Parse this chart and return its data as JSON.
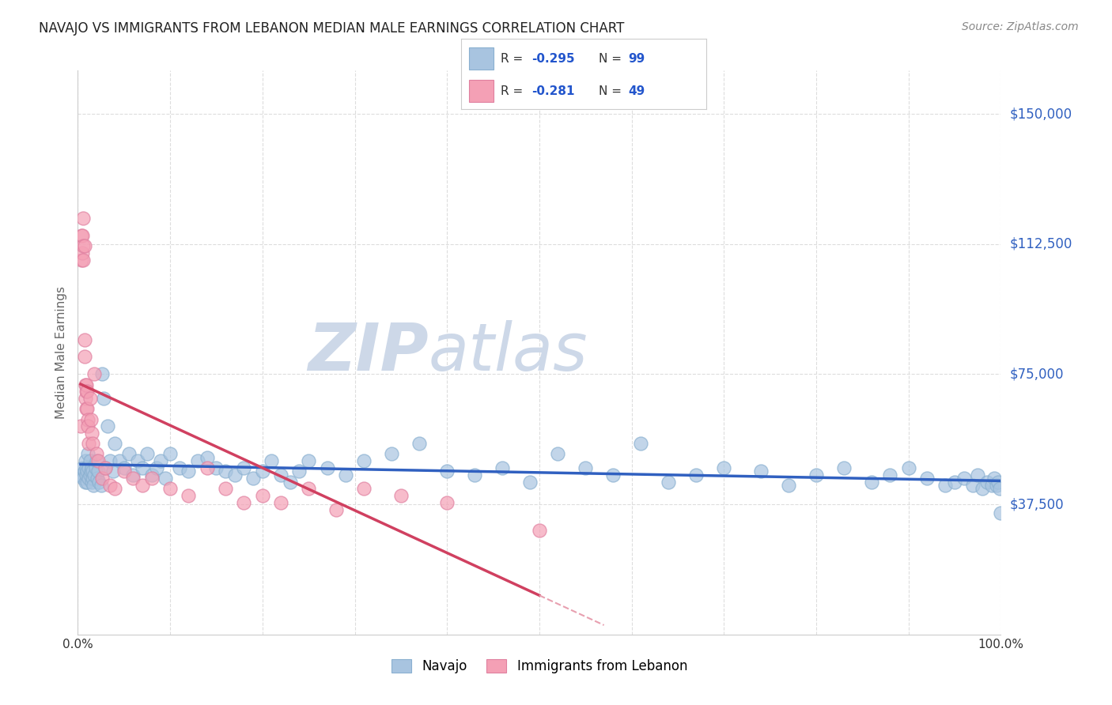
{
  "title": "NAVAJO VS IMMIGRANTS FROM LEBANON MEDIAN MALE EARNINGS CORRELATION CHART",
  "source": "Source: ZipAtlas.com",
  "ylabel": "Median Male Earnings",
  "xlim": [
    0,
    1.0
  ],
  "ylim": [
    0,
    162500
  ],
  "yticks": [
    37500,
    75000,
    112500,
    150000
  ],
  "ytick_labels": [
    "$37,500",
    "$75,000",
    "$112,500",
    "$150,000"
  ],
  "xtick_positions": [
    0.0,
    0.1,
    0.2,
    0.3,
    0.4,
    0.5,
    0.6,
    0.7,
    0.8,
    0.9,
    1.0
  ],
  "xtick_labels": [
    "0.0%",
    "",
    "",
    "",
    "",
    "",
    "",
    "",
    "",
    "",
    "100.0%"
  ],
  "navajo_color": "#a8c4e0",
  "navajo_edge_color": "#8ab0d0",
  "lebanon_color": "#f4a0b5",
  "lebanon_edge_color": "#e080a0",
  "navajo_line_color": "#3060c0",
  "lebanon_line_color": "#d04060",
  "lebanon_dash_color": "#e8a0b0",
  "watermark_zip": "ZIP",
  "watermark_atlas": "atlas",
  "watermark_color": "#cdd8e8",
  "title_color": "#222222",
  "axis_label_color": "#666666",
  "ytick_color": "#3060c0",
  "background_color": "#ffffff",
  "grid_color": "#dddddd",
  "legend_r1_label": "R = ",
  "legend_r1_val": "-0.295",
  "legend_n1_label": "N = ",
  "legend_n1_val": "99",
  "legend_r2_label": "R = ",
  "legend_r2_val": "-0.281",
  "legend_n2_label": "N = ",
  "legend_n2_val": "49",
  "navajo_x": [
    0.003,
    0.005,
    0.006,
    0.007,
    0.008,
    0.008,
    0.009,
    0.009,
    0.01,
    0.01,
    0.011,
    0.012,
    0.012,
    0.013,
    0.013,
    0.014,
    0.015,
    0.015,
    0.016,
    0.016,
    0.017,
    0.018,
    0.019,
    0.02,
    0.021,
    0.022,
    0.023,
    0.025,
    0.026,
    0.028,
    0.03,
    0.032,
    0.035,
    0.038,
    0.04,
    0.045,
    0.05,
    0.055,
    0.06,
    0.065,
    0.07,
    0.075,
    0.08,
    0.085,
    0.09,
    0.095,
    0.1,
    0.11,
    0.12,
    0.13,
    0.14,
    0.15,
    0.16,
    0.17,
    0.18,
    0.19,
    0.2,
    0.21,
    0.22,
    0.23,
    0.24,
    0.25,
    0.27,
    0.29,
    0.31,
    0.34,
    0.37,
    0.4,
    0.43,
    0.46,
    0.49,
    0.52,
    0.55,
    0.58,
    0.61,
    0.64,
    0.67,
    0.7,
    0.74,
    0.77,
    0.8,
    0.83,
    0.86,
    0.88,
    0.9,
    0.92,
    0.94,
    0.95,
    0.96,
    0.97,
    0.975,
    0.98,
    0.985,
    0.99,
    0.993,
    0.995,
    0.997,
    0.999,
    1.0
  ],
  "navajo_y": [
    46000,
    48000,
    45000,
    47000,
    44000,
    50000,
    46000,
    48000,
    47000,
    44000,
    52000,
    45000,
    48000,
    46000,
    50000,
    47000,
    44000,
    48000,
    45000,
    47000,
    43000,
    46000,
    48000,
    50000,
    45000,
    47000,
    44000,
    43000,
    75000,
    68000,
    48000,
    60000,
    50000,
    47000,
    55000,
    50000,
    48000,
    52000,
    46000,
    50000,
    48000,
    52000,
    46000,
    48000,
    50000,
    45000,
    52000,
    48000,
    47000,
    50000,
    51000,
    48000,
    47000,
    46000,
    48000,
    45000,
    47000,
    50000,
    46000,
    44000,
    47000,
    50000,
    48000,
    46000,
    50000,
    52000,
    55000,
    47000,
    46000,
    48000,
    44000,
    52000,
    48000,
    46000,
    55000,
    44000,
    46000,
    48000,
    47000,
    43000,
    46000,
    48000,
    44000,
    46000,
    48000,
    45000,
    43000,
    44000,
    45000,
    43000,
    46000,
    42000,
    44000,
    43000,
    45000,
    43000,
    44000,
    42000,
    35000
  ],
  "lebanon_x": [
    0.003,
    0.004,
    0.004,
    0.005,
    0.005,
    0.006,
    0.006,
    0.006,
    0.007,
    0.007,
    0.007,
    0.008,
    0.008,
    0.009,
    0.009,
    0.009,
    0.01,
    0.01,
    0.011,
    0.011,
    0.012,
    0.013,
    0.014,
    0.015,
    0.016,
    0.018,
    0.02,
    0.022,
    0.026,
    0.03,
    0.035,
    0.04,
    0.05,
    0.06,
    0.07,
    0.08,
    0.1,
    0.12,
    0.14,
    0.16,
    0.18,
    0.2,
    0.22,
    0.25,
    0.28,
    0.31,
    0.35,
    0.4,
    0.5
  ],
  "lebanon_y": [
    60000,
    115000,
    108000,
    110000,
    115000,
    108000,
    112000,
    120000,
    80000,
    112000,
    85000,
    68000,
    72000,
    65000,
    70000,
    72000,
    65000,
    70000,
    62000,
    60000,
    55000,
    68000,
    62000,
    58000,
    55000,
    75000,
    52000,
    50000,
    45000,
    48000,
    43000,
    42000,
    47000,
    45000,
    43000,
    45000,
    42000,
    40000,
    48000,
    42000,
    38000,
    40000,
    38000,
    42000,
    36000,
    42000,
    40000,
    38000,
    30000
  ]
}
